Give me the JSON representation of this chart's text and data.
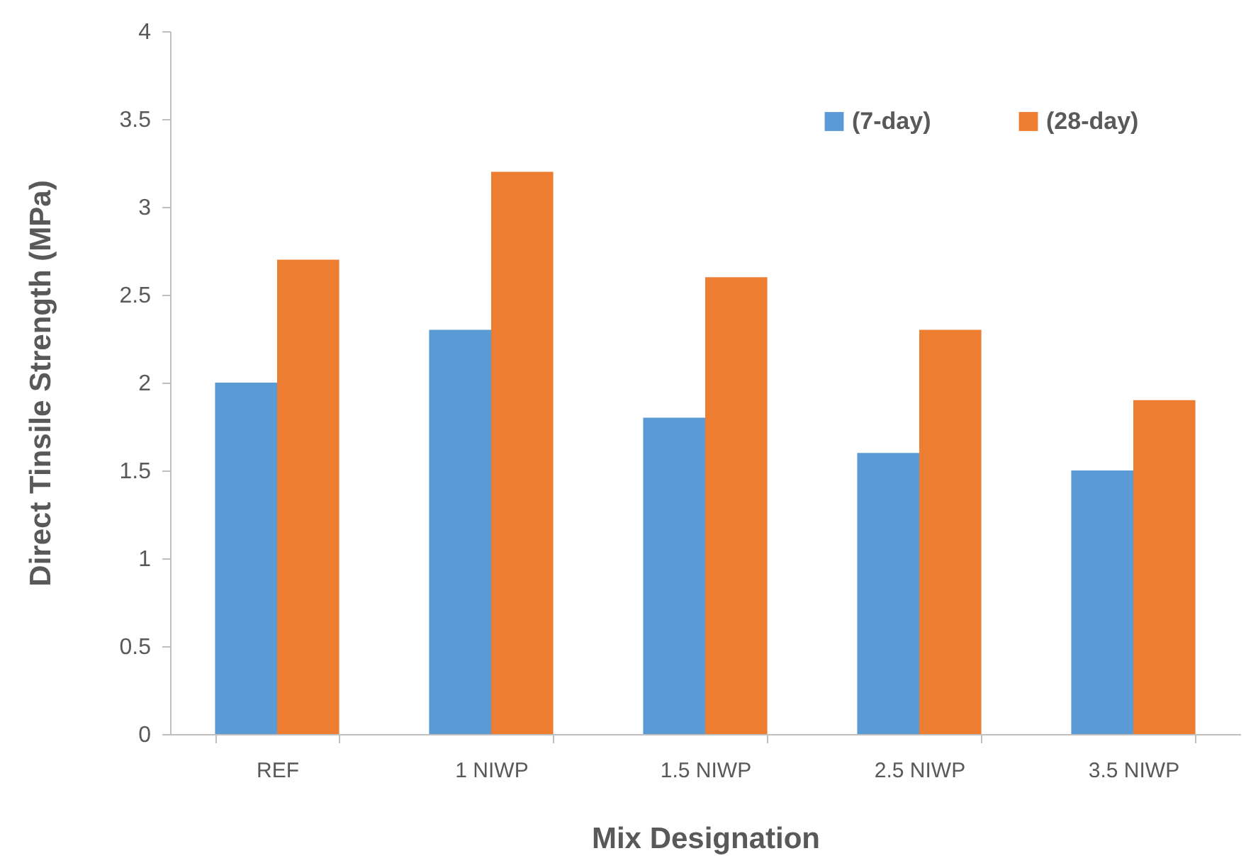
{
  "chart_data": {
    "type": "bar",
    "xlabel": "Mix Designation",
    "ylabel": "Direct Tinsile Strength (MPa)",
    "categories": [
      "REF",
      "1 NIWP",
      "1.5 NIWP",
      "2.5 NIWP",
      "3.5 NIWP"
    ],
    "series": [
      {
        "name": "(7-day)",
        "color": "#5b9bd5",
        "values": [
          2.0,
          2.3,
          1.8,
          1.6,
          1.5
        ]
      },
      {
        "name": "(28-day)",
        "color": "#ed7d31",
        "values": [
          2.7,
          3.2,
          2.6,
          2.3,
          1.9
        ]
      }
    ],
    "ylim": [
      0,
      4
    ],
    "yticks": [
      0,
      0.5,
      1,
      1.5,
      2,
      2.5,
      3,
      3.5,
      4
    ],
    "grid": false,
    "legend": "top right"
  }
}
